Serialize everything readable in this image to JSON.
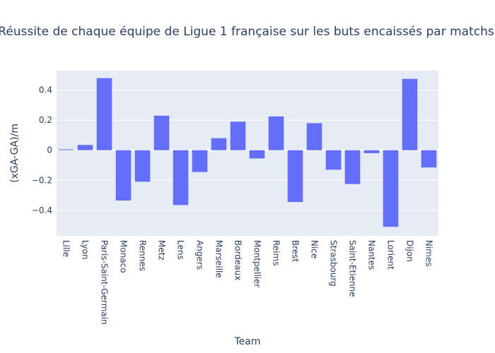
{
  "chart_data": {
    "type": "bar",
    "title": "Réussite de chaque équipe de Ligue 1 française sur les buts encaissés par matchs",
    "xlabel": "Team",
    "ylabel": "(xGA-GA)/m",
    "categories": [
      "Lille",
      "Lyon",
      "Paris-Saint-Germain",
      "Monaco",
      "Rennes",
      "Metz",
      "Lens",
      "Angers",
      "Marseille",
      "Bordeaux",
      "Montpellier",
      "Reims",
      "Brest",
      "Nice",
      "Strasbourg",
      "Saint-Etienne",
      "Nantes",
      "Lorient",
      "Dijon",
      "Nimes"
    ],
    "values": [
      0.005,
      0.035,
      0.48,
      -0.335,
      -0.21,
      0.23,
      -0.365,
      -0.145,
      0.08,
      0.19,
      -0.055,
      0.225,
      -0.345,
      0.18,
      -0.13,
      -0.225,
      -0.02,
      -0.51,
      0.475,
      -0.115
    ],
    "ylim": [
      -0.57,
      0.53
    ],
    "yticks": [
      -0.4,
      -0.2,
      0,
      0.2,
      0.4
    ],
    "ytick_labels": [
      "−0.4",
      "−0.2",
      "0",
      "0.2",
      "0.4"
    ],
    "grid": true,
    "bar_color": "#636efa",
    "plot_bg": "#e5ecf6"
  }
}
